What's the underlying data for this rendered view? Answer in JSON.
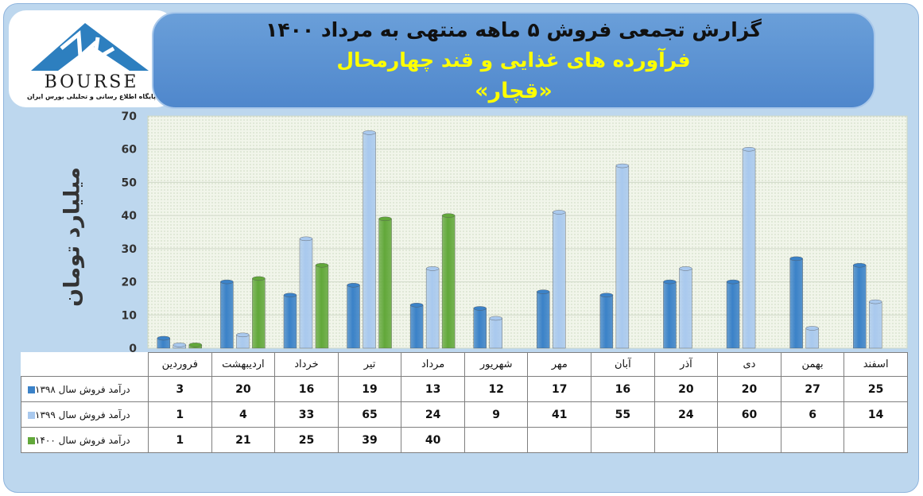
{
  "title": {
    "line1": "گزارش تجمعی فروش ۵ ماهه منتهی به مرداد ۱۴۰۰",
    "line2": "فرآورده های غذایی و قند چهارمحال",
    "line3": "«قچار»"
  },
  "logo": {
    "word": "BOURSE",
    "tagline": "پایگاه اطلاع رسانی و تحلیلی بورس ایران"
  },
  "colors": {
    "series_1398": "#3b82c8",
    "series_1399": "#a9c9ee",
    "series_1400": "#62a83a",
    "plot_bg": "#f1f5ea",
    "banner": "#5b93d3"
  },
  "chart_data": {
    "type": "bar",
    "categories": [
      "فروردین",
      "اردیبهشت",
      "خرداد",
      "تیر",
      "مرداد",
      "شهریور",
      "مهر",
      "آبان",
      "آذر",
      "دی",
      "بهمن",
      "اسفند"
    ],
    "series": [
      {
        "name": "درآمد فروش سال ۱۳۹۸",
        "values": [
          3,
          20,
          16,
          19,
          13,
          12,
          17,
          16,
          20,
          20,
          27,
          25
        ]
      },
      {
        "name": "درآمد فروش سال ۱۳۹۹",
        "values": [
          1,
          4,
          33,
          65,
          24,
          9,
          41,
          55,
          24,
          60,
          6,
          14
        ]
      },
      {
        "name": "درآمد فروش سال ۱۴۰۰",
        "values": [
          1,
          21,
          25,
          39,
          40,
          null,
          null,
          null,
          null,
          null,
          null,
          null
        ]
      }
    ],
    "ylabel": "میلیارد تومان",
    "ylim": [
      0,
      70
    ],
    "yticks": [
      0,
      10,
      20,
      30,
      40,
      50,
      60,
      70
    ],
    "grid": true,
    "legend": "data-table-below"
  }
}
